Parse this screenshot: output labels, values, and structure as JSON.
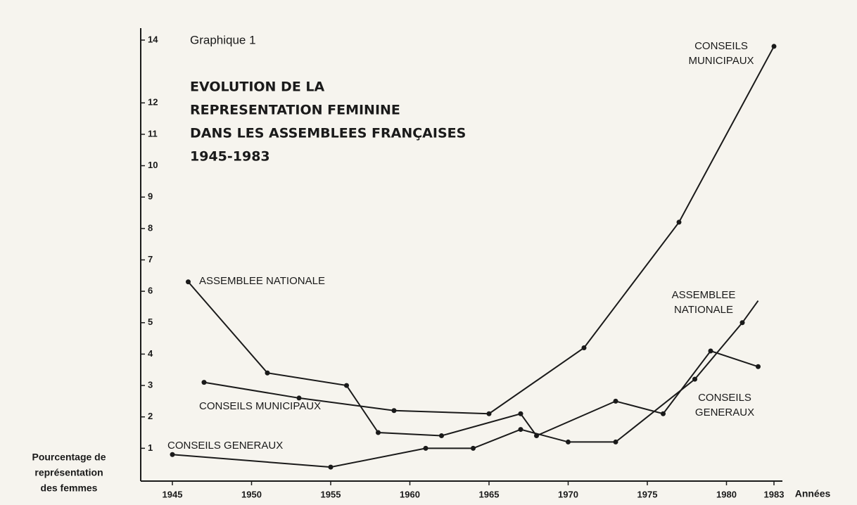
{
  "chart_data": {
    "type": "line",
    "caption": "Graphique 1",
    "title_lines": [
      "EVOLUTION DE LA",
      "REPRESENTATION FEMININE",
      "DANS LES ASSEMBLEES FRANÇAISES",
      "1945-1983"
    ],
    "y_label_lines": [
      "Pourcentage de",
      "représentation",
      "des femmes"
    ],
    "x_label": "Années",
    "xlim": [
      1945,
      1983
    ],
    "xticks": [
      1945,
      1950,
      1955,
      1960,
      1965,
      1970,
      1975,
      1980,
      1983
    ],
    "ylim": [
      0,
      14
    ],
    "yticks": [
      1,
      2,
      3,
      4,
      5,
      6,
      7,
      8,
      9,
      10,
      11,
      12,
      14
    ],
    "color": "#1a1a1a",
    "series": [
      {
        "name": "ASSEMBLEE NATIONALE",
        "color": "#1a1a1a",
        "x": [
          1946,
          1951,
          1956,
          1958,
          1962,
          1967,
          1968,
          1973,
          1976,
          1979,
          1982
        ],
        "values": [
          6.3,
          3.4,
          3.0,
          1.5,
          1.4,
          2.1,
          1.4,
          2.5,
          2.1,
          4.1,
          3.6
        ]
      },
      {
        "name": "CONSEILS MUNICIPAUX",
        "color": "#1a1a1a",
        "x": [
          1947,
          1953,
          1959,
          1965,
          1971,
          1977,
          1983
        ],
        "values": [
          3.1,
          2.6,
          2.2,
          2.1,
          4.2,
          8.2,
          13.8
        ]
      },
      {
        "name": "CONSEILS GENERAUX",
        "color": "#1a1a1a",
        "x": [
          1945,
          1955,
          1961,
          1964,
          1967,
          1970,
          1973,
          1978,
          1981,
          1982
        ],
        "values": [
          0.8,
          0.4,
          1.0,
          1.0,
          1.6,
          1.2,
          1.2,
          3.2,
          5.0,
          5.7
        ]
      }
    ],
    "annotations": [
      {
        "lines": [
          "CONSEILS",
          "MUNICIPAUX"
        ]
      },
      {
        "lines": [
          "ASSEMBLEE",
          "NATIONALE"
        ]
      },
      {
        "lines": [
          "CONSEILS",
          "GENERAUX"
        ]
      },
      {
        "lines": [
          "CONSEILS",
          "MUNICIPAUX"
        ]
      }
    ]
  }
}
